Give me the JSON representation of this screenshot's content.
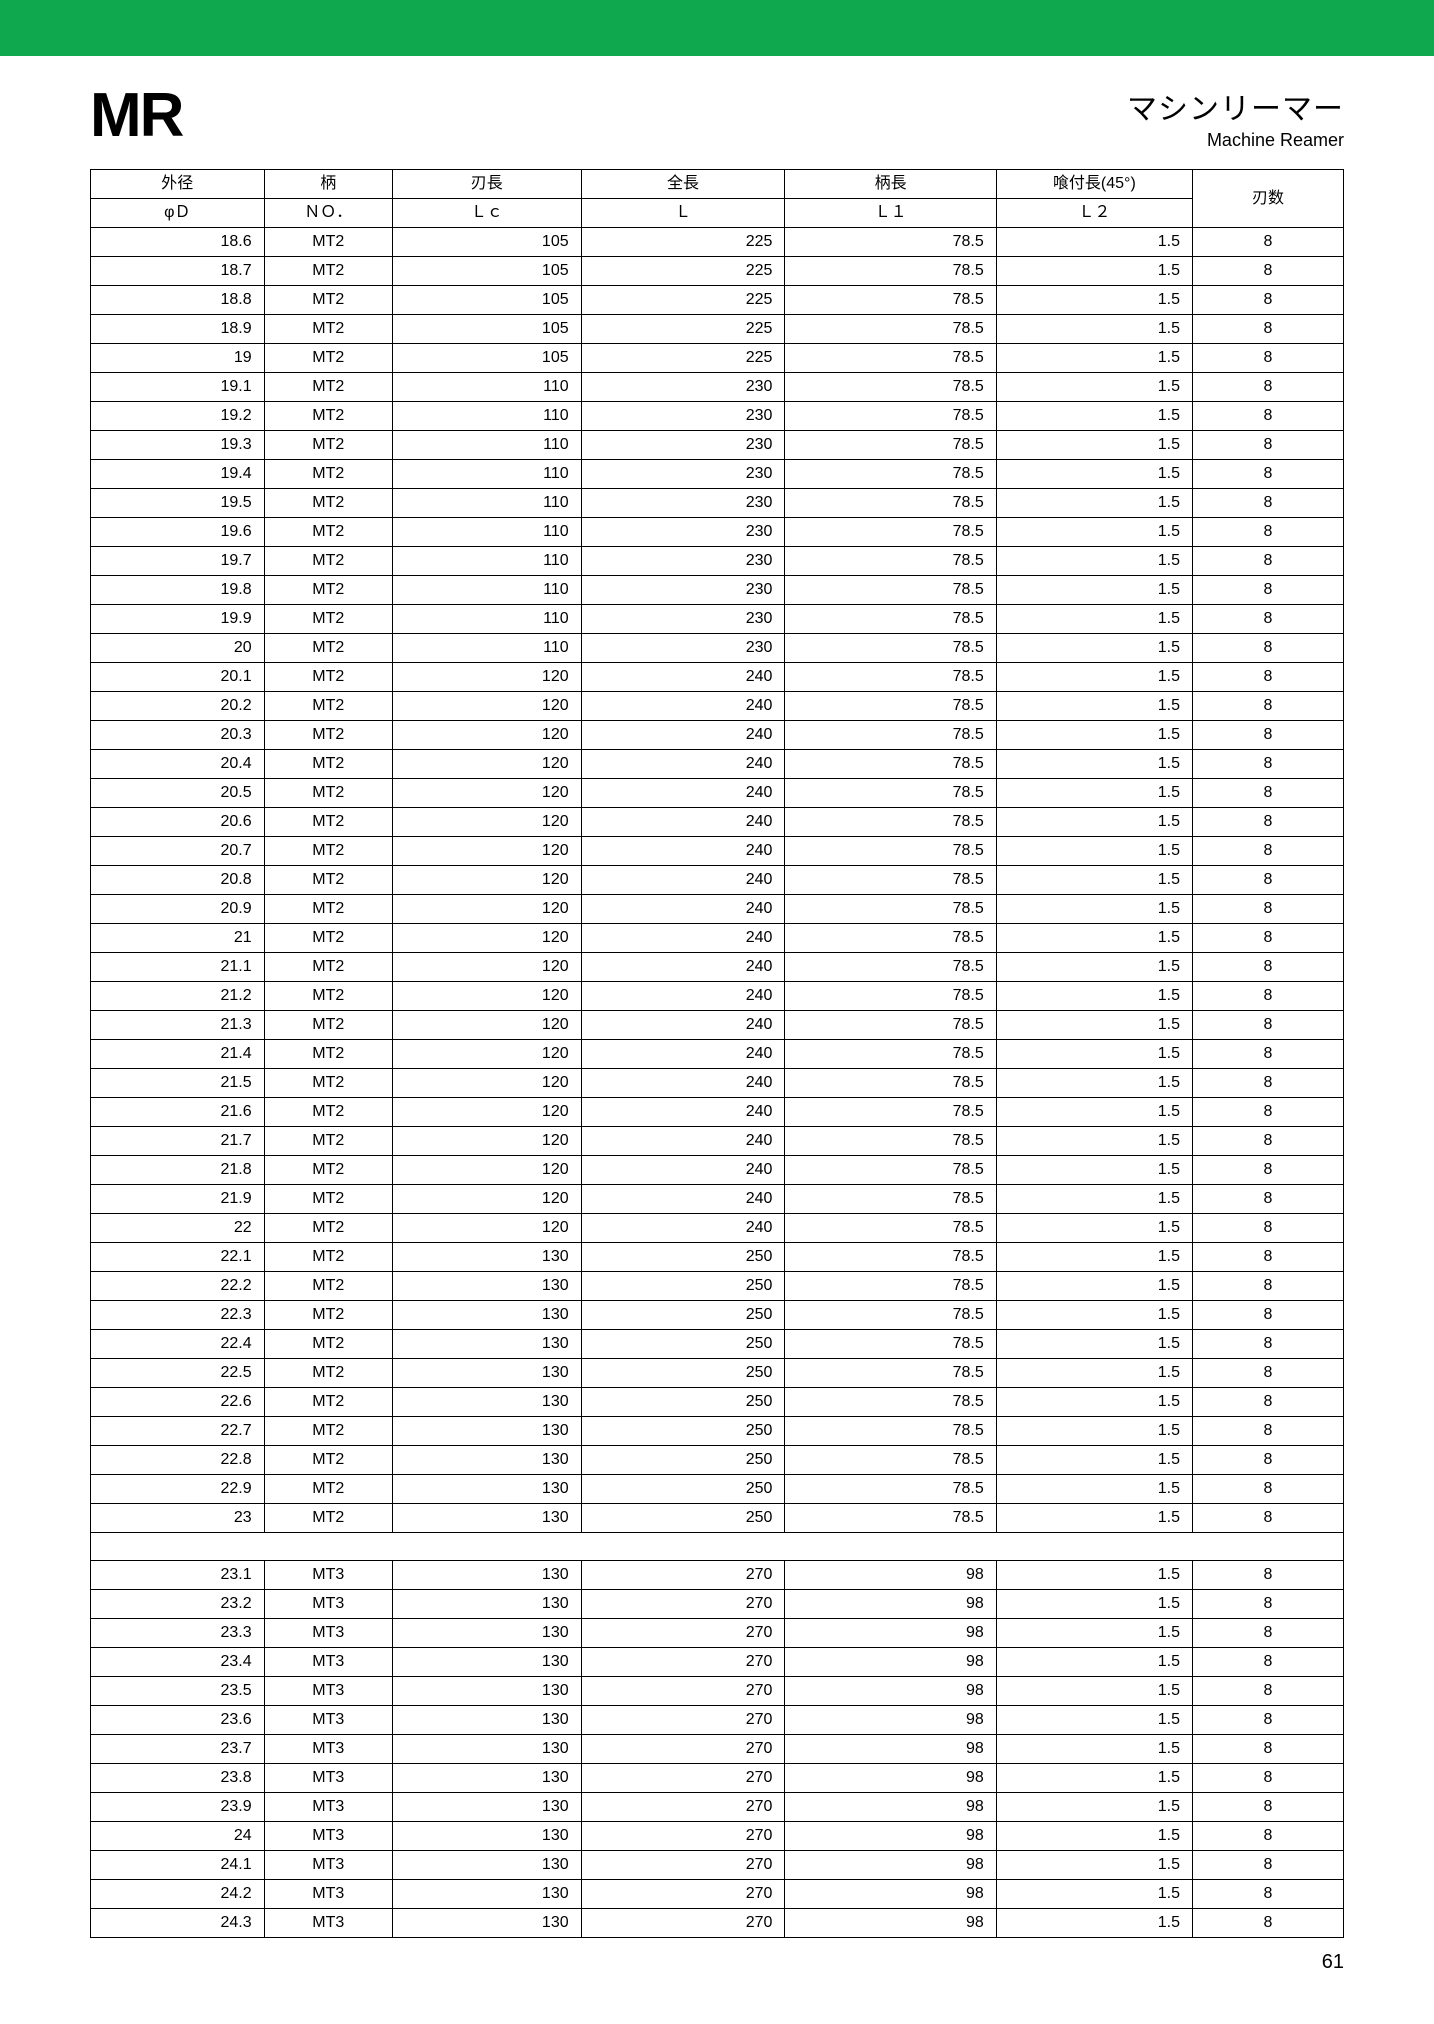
{
  "header": {
    "code": "MR",
    "title_jp": "マシンリーマー",
    "title_en": "Machine Reamer"
  },
  "columns": {
    "h1": [
      "外径",
      "柄",
      "刃長",
      "全長",
      "柄長",
      "喰付長(45°)",
      "刃数"
    ],
    "h2": [
      "φＤ",
      "ＮＯ．",
      "Ｌｃ",
      "Ｌ",
      "Ｌ１",
      "Ｌ２"
    ]
  },
  "rows": [
    [
      "18.6",
      "MT2",
      "105",
      "225",
      "78.5",
      "1.5",
      "8"
    ],
    [
      "18.7",
      "MT2",
      "105",
      "225",
      "78.5",
      "1.5",
      "8"
    ],
    [
      "18.8",
      "MT2",
      "105",
      "225",
      "78.5",
      "1.5",
      "8"
    ],
    [
      "18.9",
      "MT2",
      "105",
      "225",
      "78.5",
      "1.5",
      "8"
    ],
    [
      "19",
      "MT2",
      "105",
      "225",
      "78.5",
      "1.5",
      "8"
    ],
    [
      "19.1",
      "MT2",
      "110",
      "230",
      "78.5",
      "1.5",
      "8"
    ],
    [
      "19.2",
      "MT2",
      "110",
      "230",
      "78.5",
      "1.5",
      "8"
    ],
    [
      "19.3",
      "MT2",
      "110",
      "230",
      "78.5",
      "1.5",
      "8"
    ],
    [
      "19.4",
      "MT2",
      "110",
      "230",
      "78.5",
      "1.5",
      "8"
    ],
    [
      "19.5",
      "MT2",
      "110",
      "230",
      "78.5",
      "1.5",
      "8"
    ],
    [
      "19.6",
      "MT2",
      "110",
      "230",
      "78.5",
      "1.5",
      "8"
    ],
    [
      "19.7",
      "MT2",
      "110",
      "230",
      "78.5",
      "1.5",
      "8"
    ],
    [
      "19.8",
      "MT2",
      "110",
      "230",
      "78.5",
      "1.5",
      "8"
    ],
    [
      "19.9",
      "MT2",
      "110",
      "230",
      "78.5",
      "1.5",
      "8"
    ],
    [
      "20",
      "MT2",
      "110",
      "230",
      "78.5",
      "1.5",
      "8"
    ],
    [
      "20.1",
      "MT2",
      "120",
      "240",
      "78.5",
      "1.5",
      "8"
    ],
    [
      "20.2",
      "MT2",
      "120",
      "240",
      "78.5",
      "1.5",
      "8"
    ],
    [
      "20.3",
      "MT2",
      "120",
      "240",
      "78.5",
      "1.5",
      "8"
    ],
    [
      "20.4",
      "MT2",
      "120",
      "240",
      "78.5",
      "1.5",
      "8"
    ],
    [
      "20.5",
      "MT2",
      "120",
      "240",
      "78.5",
      "1.5",
      "8"
    ],
    [
      "20.6",
      "MT2",
      "120",
      "240",
      "78.5",
      "1.5",
      "8"
    ],
    [
      "20.7",
      "MT2",
      "120",
      "240",
      "78.5",
      "1.5",
      "8"
    ],
    [
      "20.8",
      "MT2",
      "120",
      "240",
      "78.5",
      "1.5",
      "8"
    ],
    [
      "20.9",
      "MT2",
      "120",
      "240",
      "78.5",
      "1.5",
      "8"
    ],
    [
      "21",
      "MT2",
      "120",
      "240",
      "78.5",
      "1.5",
      "8"
    ],
    [
      "21.1",
      "MT2",
      "120",
      "240",
      "78.5",
      "1.5",
      "8"
    ],
    [
      "21.2",
      "MT2",
      "120",
      "240",
      "78.5",
      "1.5",
      "8"
    ],
    [
      "21.3",
      "MT2",
      "120",
      "240",
      "78.5",
      "1.5",
      "8"
    ],
    [
      "21.4",
      "MT2",
      "120",
      "240",
      "78.5",
      "1.5",
      "8"
    ],
    [
      "21.5",
      "MT2",
      "120",
      "240",
      "78.5",
      "1.5",
      "8"
    ],
    [
      "21.6",
      "MT2",
      "120",
      "240",
      "78.5",
      "1.5",
      "8"
    ],
    [
      "21.7",
      "MT2",
      "120",
      "240",
      "78.5",
      "1.5",
      "8"
    ],
    [
      "21.8",
      "MT2",
      "120",
      "240",
      "78.5",
      "1.5",
      "8"
    ],
    [
      "21.9",
      "MT2",
      "120",
      "240",
      "78.5",
      "1.5",
      "8"
    ],
    [
      "22",
      "MT2",
      "120",
      "240",
      "78.5",
      "1.5",
      "8"
    ],
    [
      "22.1",
      "MT2",
      "130",
      "250",
      "78.5",
      "1.5",
      "8"
    ],
    [
      "22.2",
      "MT2",
      "130",
      "250",
      "78.5",
      "1.5",
      "8"
    ],
    [
      "22.3",
      "MT2",
      "130",
      "250",
      "78.5",
      "1.5",
      "8"
    ],
    [
      "22.4",
      "MT2",
      "130",
      "250",
      "78.5",
      "1.5",
      "8"
    ],
    [
      "22.5",
      "MT2",
      "130",
      "250",
      "78.5",
      "1.5",
      "8"
    ],
    [
      "22.6",
      "MT2",
      "130",
      "250",
      "78.5",
      "1.5",
      "8"
    ],
    [
      "22.7",
      "MT2",
      "130",
      "250",
      "78.5",
      "1.5",
      "8"
    ],
    [
      "22.8",
      "MT2",
      "130",
      "250",
      "78.5",
      "1.5",
      "8"
    ],
    [
      "22.9",
      "MT2",
      "130",
      "250",
      "78.5",
      "1.5",
      "8"
    ],
    [
      "23",
      "MT2",
      "130",
      "250",
      "78.5",
      "1.5",
      "8"
    ],
    null,
    [
      "23.1",
      "MT3",
      "130",
      "270",
      "98",
      "1.5",
      "8"
    ],
    [
      "23.2",
      "MT3",
      "130",
      "270",
      "98",
      "1.5",
      "8"
    ],
    [
      "23.3",
      "MT3",
      "130",
      "270",
      "98",
      "1.5",
      "8"
    ],
    [
      "23.4",
      "MT3",
      "130",
      "270",
      "98",
      "1.5",
      "8"
    ],
    [
      "23.5",
      "MT3",
      "130",
      "270",
      "98",
      "1.5",
      "8"
    ],
    [
      "23.6",
      "MT3",
      "130",
      "270",
      "98",
      "1.5",
      "8"
    ],
    [
      "23.7",
      "MT3",
      "130",
      "270",
      "98",
      "1.5",
      "8"
    ],
    [
      "23.8",
      "MT3",
      "130",
      "270",
      "98",
      "1.5",
      "8"
    ],
    [
      "23.9",
      "MT3",
      "130",
      "270",
      "98",
      "1.5",
      "8"
    ],
    [
      "24",
      "MT3",
      "130",
      "270",
      "98",
      "1.5",
      "8"
    ],
    [
      "24.1",
      "MT3",
      "130",
      "270",
      "98",
      "1.5",
      "8"
    ],
    [
      "24.2",
      "MT3",
      "130",
      "270",
      "98",
      "1.5",
      "8"
    ],
    [
      "24.3",
      "MT3",
      "130",
      "270",
      "98",
      "1.5",
      "8"
    ]
  ],
  "page_number": "61",
  "style": {
    "green": "#0fa84e",
    "border": "#000000",
    "font_body": 16,
    "font_code": 62,
    "font_jp": 30,
    "font_en": 18
  }
}
